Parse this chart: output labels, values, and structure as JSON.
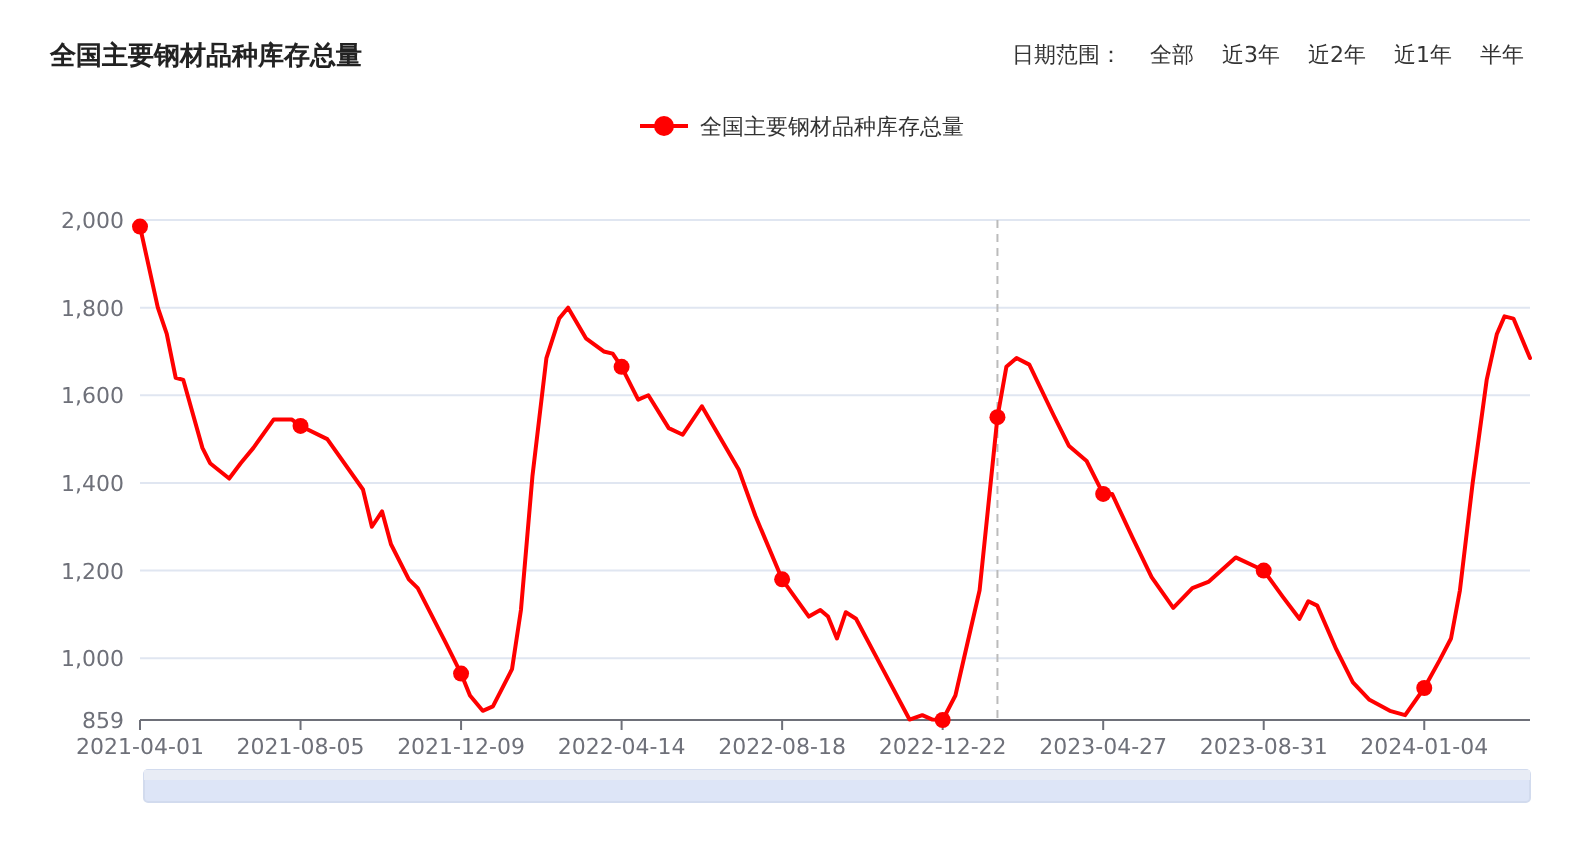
{
  "chart_data": {
    "type": "line",
    "title": "全国主要钢材品种库存总量",
    "annotations": [
      "日期范围：",
      "全部",
      "近3年",
      "近2年",
      "近1年",
      "半年"
    ],
    "legend": "top",
    "grid": "y",
    "xlim": [
      "2021-04-01",
      "2024-03-27"
    ],
    "xticks": [
      "2021-04-01",
      "2021-08-05",
      "2021-12-09",
      "2022-04-14",
      "2022-08-18",
      "2022-12-22",
      "2023-04-27",
      "2023-08-31",
      "2024-01-04"
    ],
    "ylim": [
      859,
      2000
    ],
    "yticks": [
      859,
      {
        "value": 1000,
        "label": "1,000"
      },
      {
        "value": 1200,
        "label": "1,200"
      },
      {
        "value": 1400,
        "label": "1,400"
      },
      {
        "value": 1600,
        "label": "1,600"
      },
      {
        "value": 1800,
        "label": "1,800"
      },
      {
        "value": 2000,
        "label": "2,000"
      }
    ],
    "ref_lines": [
      {
        "axis": "x",
        "value": "2023-02-03",
        "label": null,
        "color": "#bbbbbb",
        "line_style": "dashed"
      }
    ],
    "series": [
      {
        "name": "全国主要钢材品种库存总量",
        "color": "#ff0000",
        "line_style": "solid",
        "x": [
          "2021-04-01",
          "2021-04-15",
          "2021-04-22",
          "2021-04-29",
          "2021-05-05",
          "2021-05-20",
          "2021-05-26",
          "2021-06-10",
          "2021-06-19",
          "2021-06-29",
          "2021-07-15",
          "2021-07-29",
          "2021-08-05",
          "2021-08-26",
          "2021-09-23",
          "2021-09-30",
          "2021-10-08",
          "2021-10-15",
          "2021-10-29",
          "2021-11-05",
          "2021-11-27",
          "2021-12-09",
          "2021-12-16",
          "2021-12-26",
          "2022-01-03",
          "2022-01-18",
          "2022-01-25",
          "2022-02-03",
          "2022-02-14",
          "2022-02-24",
          "2022-03-03",
          "2022-03-17",
          "2022-03-31",
          "2022-04-07",
          "2022-04-14",
          "2022-04-27",
          "2022-05-05",
          "2022-05-21",
          "2022-06-01",
          "2022-06-16",
          "2022-07-15",
          "2022-07-28",
          "2022-08-18",
          "2022-09-08",
          "2022-09-17",
          "2022-09-23",
          "2022-09-30",
          "2022-10-07",
          "2022-10-15",
          "2022-11-05",
          "2022-11-26",
          "2022-12-06",
          "2022-12-14",
          "2022-12-22",
          "2023-01-01",
          "2023-01-20",
          "2023-02-03",
          "2023-02-10",
          "2023-02-18",
          "2023-02-28",
          "2023-03-19",
          "2023-03-31",
          "2023-04-14",
          "2023-04-27",
          "2023-05-04",
          "2023-05-20",
          "2023-06-04",
          "2023-06-21",
          "2023-07-06",
          "2023-07-19",
          "2023-08-09",
          "2023-08-31",
          "2023-09-15",
          "2023-09-28",
          "2023-10-05",
          "2023-10-12",
          "2023-10-27",
          "2023-11-09",
          "2023-11-22",
          "2023-12-08",
          "2023-12-20",
          "2024-01-04",
          "2024-01-16",
          "2024-01-25",
          "2024-02-01",
          "2024-02-11",
          "2024-02-22",
          "2024-03-01",
          "2024-03-07",
          "2024-03-14",
          "2024-03-27"
        ],
        "values": [
          1985,
          1800,
          1740,
          1640,
          1635,
          1480,
          1445,
          1410,
          1445,
          1480,
          1545,
          1545,
          1530,
          1500,
          1385,
          1300,
          1335,
          1260,
          1180,
          1160,
          1035,
          965,
          915,
          880,
          890,
          975,
          1110,
          1415,
          1685,
          1775,
          1800,
          1730,
          1700,
          1695,
          1665,
          1590,
          1600,
          1525,
          1510,
          1575,
          1430,
          1325,
          1180,
          1095,
          1110,
          1095,
          1045,
          1105,
          1090,
          975,
          860,
          870,
          860,
          859,
          915,
          1155,
          1550,
          1665,
          1685,
          1670,
          1555,
          1485,
          1450,
          1375,
          1375,
          1275,
          1185,
          1115,
          1160,
          1175,
          1230,
          1200,
          1140,
          1090,
          1130,
          1120,
          1020,
          945,
          905,
          880,
          870,
          932,
          995,
          1045,
          1155,
          1400,
          1635,
          1740,
          1780,
          1775,
          1685
        ]
      },
      {
        "type": "scatter",
        "color": "#ff0000",
        "marker": "circle",
        "x": [
          "2021-04-01",
          "2021-08-05",
          "2021-12-09",
          "2022-04-14",
          "2022-08-18",
          "2022-12-22",
          "2023-02-03",
          "2023-04-27",
          "2023-08-31",
          "2024-01-04"
        ],
        "values": [
          1985,
          1530,
          965,
          1665,
          1180,
          859,
          1550,
          1375,
          1200,
          932
        ]
      }
    ]
  }
}
